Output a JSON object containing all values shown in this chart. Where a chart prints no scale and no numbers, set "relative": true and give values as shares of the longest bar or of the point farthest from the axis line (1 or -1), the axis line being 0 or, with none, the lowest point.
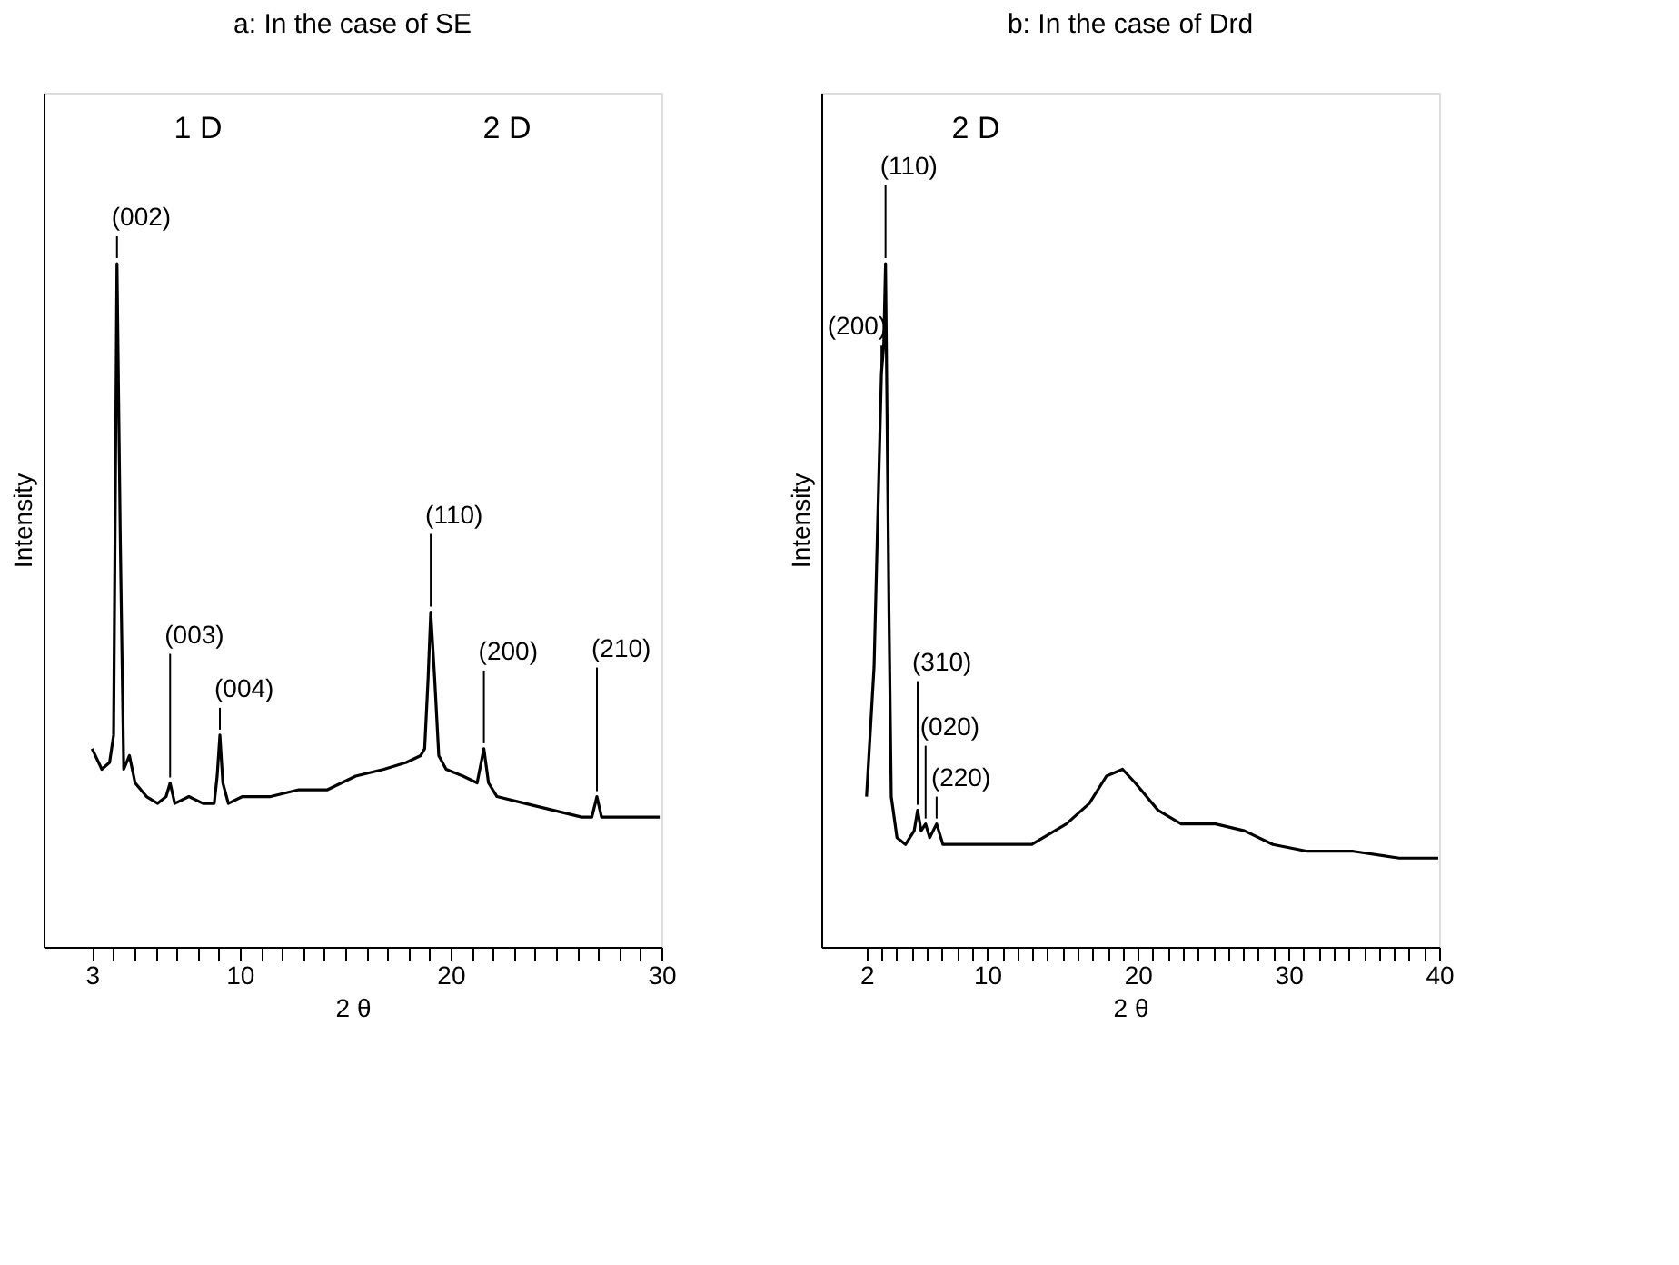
{
  "chart_data": [
    {
      "type": "line",
      "title": "a: In the case of SE",
      "xlabel": "2 θ",
      "ylabel": "Intensity",
      "relative": true,
      "grid": false,
      "marker": "none",
      "line_style": "solid",
      "xlim": [
        0.7,
        30
      ],
      "xticks": [
        3,
        {
          "value": 4,
          "label": null
        },
        {
          "value": 5,
          "label": null
        },
        {
          "value": 6,
          "label": null
        },
        {
          "value": 7,
          "label": null
        },
        {
          "value": 8,
          "label": null
        },
        {
          "value": 9,
          "label": null
        },
        10,
        {
          "value": 11,
          "label": null
        },
        {
          "value": 12,
          "label": null
        },
        {
          "value": 13,
          "label": null
        },
        {
          "value": 14,
          "label": null
        },
        {
          "value": 15,
          "label": null
        },
        {
          "value": 16,
          "label": null
        },
        {
          "value": 17,
          "label": null
        },
        {
          "value": 18,
          "label": null
        },
        {
          "value": 19,
          "label": null
        },
        20,
        {
          "value": 21,
          "label": null
        },
        {
          "value": 22,
          "label": null
        },
        {
          "value": 23,
          "label": null
        },
        {
          "value": 24,
          "label": null
        },
        {
          "value": 25,
          "label": null
        },
        {
          "value": 26,
          "label": null
        },
        {
          "value": 27,
          "label": null
        },
        {
          "value": 28,
          "label": null
        },
        {
          "value": 29,
          "label": null
        },
        30
      ],
      "series": [
        {
          "color": "#000000",
          "x": [
            3.0,
            3.46,
            3.83,
            4.02,
            4.18,
            4.34,
            4.5,
            4.77,
            5.04,
            5.58,
            6.11,
            6.51,
            6.7,
            6.92,
            7.59,
            8.26,
            8.79,
            8.93,
            9.06,
            9.2,
            9.46,
            10.13,
            11.47,
            12.8,
            14.16,
            15.5,
            16.84,
            17.9,
            18.58,
            18.77,
            18.93,
            19.06,
            19.25,
            19.44,
            19.79,
            20.59,
            21.26,
            21.58,
            21.8,
            22.2,
            23.54,
            24.88,
            26.22,
            26.7,
            26.94,
            27.16,
            28.1,
            28.9,
            29.92
          ],
          "values": [
            0.29,
            0.26,
            0.27,
            0.31,
            1.0,
            0.59,
            0.26,
            0.28,
            0.24,
            0.22,
            0.21,
            0.22,
            0.24,
            0.21,
            0.22,
            0.21,
            0.21,
            0.25,
            0.31,
            0.24,
            0.21,
            0.22,
            0.22,
            0.23,
            0.23,
            0.25,
            0.26,
            0.27,
            0.28,
            0.29,
            0.39,
            0.49,
            0.39,
            0.28,
            0.26,
            0.25,
            0.24,
            0.29,
            0.24,
            0.22,
            0.21,
            0.2,
            0.19,
            0.19,
            0.22,
            0.19,
            0.19,
            0.19,
            0.19
          ]
        }
      ],
      "annotations": [
        {
          "text": "(002)",
          "x": 4.18,
          "y": 1.0
        },
        {
          "text": "(110)",
          "x": 19.06,
          "y": 0.49
        },
        {
          "text": "(003)",
          "x": 6.7,
          "y": 0.24
        },
        {
          "text": "(004)",
          "x": 9.06,
          "y": 0.31
        },
        {
          "text": "(200)",
          "x": 21.58,
          "y": 0.29
        },
        {
          "text": "(210)",
          "x": 26.94,
          "y": 0.22
        },
        "1 D",
        "2 D"
      ]
    },
    {
      "type": "line",
      "title": "b: In the case of Drd",
      "xlabel": "2 θ",
      "ylabel": "Intensity",
      "relative": true,
      "grid": false,
      "marker": "none",
      "line_style": "solid",
      "xlim": [
        -1,
        40
      ],
      "xticks": [
        2,
        {
          "value": 3,
          "label": null
        },
        {
          "value": 4,
          "label": null
        },
        {
          "value": 5,
          "label": null
        },
        {
          "value": 6,
          "label": null
        },
        {
          "value": 7,
          "label": null
        },
        {
          "value": 8,
          "label": null
        },
        {
          "value": 9,
          "label": null
        },
        10,
        {
          "value": 11,
          "label": null
        },
        {
          "value": 12,
          "label": null
        },
        {
          "value": 13,
          "label": null
        },
        {
          "value": 14,
          "label": null
        },
        {
          "value": 15,
          "label": null
        },
        {
          "value": 16,
          "label": null
        },
        {
          "value": 17,
          "label": null
        },
        {
          "value": 18,
          "label": null
        },
        {
          "value": 19,
          "label": null
        },
        20,
        {
          "value": 21,
          "label": null
        },
        {
          "value": 22,
          "label": null
        },
        {
          "value": 23,
          "label": null
        },
        {
          "value": 24,
          "label": null
        },
        {
          "value": 25,
          "label": null
        },
        {
          "value": 26,
          "label": null
        },
        {
          "value": 27,
          "label": null
        },
        {
          "value": 28,
          "label": null
        },
        {
          "value": 29,
          "label": null
        },
        30,
        {
          "value": 31,
          "label": null
        },
        {
          "value": 32,
          "label": null
        },
        {
          "value": 33,
          "label": null
        },
        {
          "value": 34,
          "label": null
        },
        {
          "value": 35,
          "label": null
        },
        {
          "value": 36,
          "label": null
        },
        {
          "value": 37,
          "label": null
        },
        {
          "value": 38,
          "label": null
        },
        {
          "value": 39,
          "label": null
        },
        40
      ],
      "series": [
        {
          "color": "#000000",
          "x": [
            2.0,
            2.5,
            2.76,
            2.99,
            3.14,
            3.26,
            3.37,
            3.49,
            3.64,
            4.02,
            4.59,
            5.16,
            5.39,
            5.62,
            5.92,
            6.19,
            6.65,
            7.07,
            8.4,
            10.69,
            12.97,
            15.26,
            16.78,
            17.92,
            18.99,
            19.83,
            21.35,
            22.88,
            25.16,
            27.07,
            28.97,
            31.26,
            34.3,
            37.35,
            39.94
          ],
          "values": [
            0.22,
            0.41,
            0.64,
            0.84,
            0.88,
            1.0,
            0.76,
            0.49,
            0.22,
            0.16,
            0.15,
            0.17,
            0.2,
            0.17,
            0.18,
            0.16,
            0.18,
            0.15,
            0.15,
            0.15,
            0.15,
            0.18,
            0.21,
            0.25,
            0.26,
            0.24,
            0.2,
            0.18,
            0.18,
            0.17,
            0.15,
            0.14,
            0.14,
            0.13,
            0.13
          ]
        }
      ],
      "annotations": [
        {
          "text": "(200)",
          "x": 2.99,
          "y": 0.84
        },
        {
          "text": "(110)",
          "x": 3.26,
          "y": 1.0
        },
        {
          "text": "(310)",
          "x": 5.39,
          "y": 0.2
        },
        {
          "text": "(220)",
          "x": 6.65,
          "y": 0.18
        },
        {
          "text": "(020)",
          "x": 5.92,
          "y": 0.18
        },
        "2 D"
      ]
    }
  ]
}
